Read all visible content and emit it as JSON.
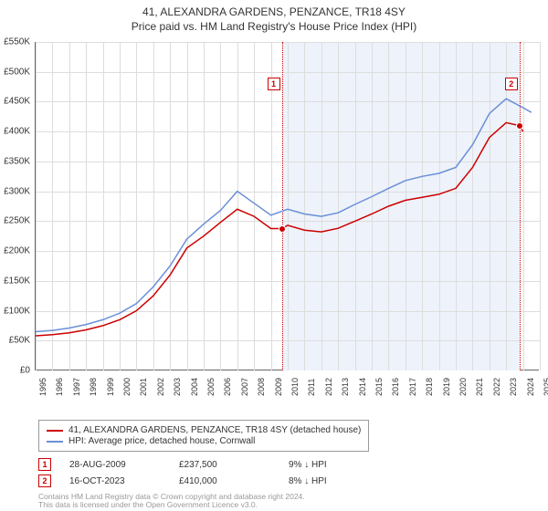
{
  "title": "41, ALEXANDRA GARDENS, PENZANCE, TR18 4SY",
  "subtitle": "Price paid vs. HM Land Registry's House Price Index (HPI)",
  "chart": {
    "type": "line",
    "background_color": "#ffffff",
    "shaded_band_color": "#eef2fa",
    "shaded_band_xrange": [
      2009.65,
      2023.79
    ],
    "grid_color": "#dddddd",
    "axis_color": "#666666",
    "tick_fontsize": 10,
    "xlim": [
      1995,
      2025
    ],
    "ylim": [
      0,
      550000
    ],
    "ytick_step": 50000,
    "yticks": [
      "£0",
      "£50K",
      "£100K",
      "£150K",
      "£200K",
      "£250K",
      "£300K",
      "£350K",
      "£400K",
      "£450K",
      "£500K",
      "£550K"
    ],
    "xticks": [
      1995,
      1996,
      1997,
      1998,
      1999,
      2000,
      2001,
      2002,
      2003,
      2004,
      2005,
      2006,
      2007,
      2008,
      2009,
      2010,
      2011,
      2012,
      2013,
      2014,
      2015,
      2016,
      2017,
      2018,
      2019,
      2020,
      2021,
      2022,
      2023,
      2024,
      2025
    ],
    "series": [
      {
        "name": "41, ALEXANDRA GARDENS, PENZANCE, TR18 4SY (detached house)",
        "color": "#cc0000",
        "line_width": 1.5,
        "data": [
          [
            1995,
            58000
          ],
          [
            1996,
            60000
          ],
          [
            1997,
            63000
          ],
          [
            1998,
            68000
          ],
          [
            1999,
            75000
          ],
          [
            2000,
            85000
          ],
          [
            2001,
            100000
          ],
          [
            2002,
            125000
          ],
          [
            2003,
            160000
          ],
          [
            2004,
            205000
          ],
          [
            2005,
            225000
          ],
          [
            2006,
            248000
          ],
          [
            2007,
            270000
          ],
          [
            2008,
            258000
          ],
          [
            2009,
            237500
          ],
          [
            2009.65,
            237500
          ],
          [
            2010,
            243000
          ],
          [
            2011,
            235000
          ],
          [
            2012,
            232000
          ],
          [
            2013,
            238000
          ],
          [
            2014,
            250000
          ],
          [
            2015,
            262000
          ],
          [
            2016,
            275000
          ],
          [
            2017,
            285000
          ],
          [
            2018,
            290000
          ],
          [
            2019,
            295000
          ],
          [
            2020,
            305000
          ],
          [
            2021,
            340000
          ],
          [
            2022,
            390000
          ],
          [
            2023,
            415000
          ],
          [
            2023.79,
            410000
          ],
          [
            2024,
            400000
          ]
        ]
      },
      {
        "name": "HPI: Average price, detached house, Cornwall",
        "color": "#6a8fd8",
        "line_width": 1.5,
        "data": [
          [
            1995,
            65000
          ],
          [
            1996,
            67000
          ],
          [
            1997,
            71000
          ],
          [
            1998,
            77000
          ],
          [
            1999,
            85000
          ],
          [
            2000,
            96000
          ],
          [
            2001,
            112000
          ],
          [
            2002,
            140000
          ],
          [
            2003,
            175000
          ],
          [
            2004,
            220000
          ],
          [
            2005,
            245000
          ],
          [
            2006,
            268000
          ],
          [
            2007,
            300000
          ],
          [
            2008,
            280000
          ],
          [
            2009,
            260000
          ],
          [
            2010,
            270000
          ],
          [
            2011,
            262000
          ],
          [
            2012,
            258000
          ],
          [
            2013,
            264000
          ],
          [
            2014,
            278000
          ],
          [
            2015,
            291000
          ],
          [
            2016,
            305000
          ],
          [
            2017,
            318000
          ],
          [
            2018,
            325000
          ],
          [
            2019,
            330000
          ],
          [
            2020,
            340000
          ],
          [
            2021,
            378000
          ],
          [
            2022,
            430000
          ],
          [
            2023,
            455000
          ],
          [
            2024,
            440000
          ],
          [
            2024.5,
            432000
          ]
        ]
      }
    ],
    "markers": [
      {
        "n": "1",
        "x": 2009.65,
        "y": 237500,
        "box_y": 490000,
        "box_align": "right"
      },
      {
        "n": "2",
        "x": 2023.79,
        "y": 410000,
        "box_y": 490000,
        "box_align": "right"
      }
    ],
    "reflines": [
      2009.65,
      2023.79
    ]
  },
  "legend": {
    "items": [
      {
        "color": "#cc0000",
        "label": "41, ALEXANDRA GARDENS, PENZANCE, TR18 4SY (detached house)"
      },
      {
        "color": "#6a8fd8",
        "label": "HPI: Average price, detached house, Cornwall"
      }
    ]
  },
  "events": [
    {
      "n": "1",
      "date": "28-AUG-2009",
      "price": "£237,500",
      "delta": "9% ↓ HPI"
    },
    {
      "n": "2",
      "date": "16-OCT-2023",
      "price": "£410,000",
      "delta": "8% ↓ HPI"
    }
  ],
  "attribution": {
    "line1": "Contains HM Land Registry data © Crown copyright and database right 2024.",
    "line2": "This data is licensed under the Open Government Licence v3.0."
  }
}
